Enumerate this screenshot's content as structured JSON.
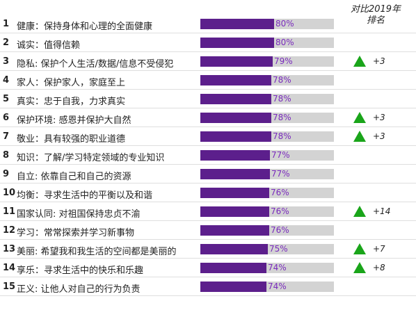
{
  "header": {
    "line1": "对比2019年",
    "line2": "排名"
  },
  "chart_data": {
    "type": "bar",
    "orientation": "horizontal",
    "ranks": [
      1,
      2,
      3,
      4,
      5,
      6,
      7,
      8,
      9,
      10,
      11,
      12,
      13,
      14,
      15
    ],
    "categories": [
      "健康：保持身体和心理的全面健康",
      "诚实：值得信赖",
      "隐私: 保护个人生活/数据/信息不受侵犯",
      "家人：保护家人，家庭至上",
      "真实：忠于自我，力求真实",
      "保护环境: 感恩并保护大自然",
      "敬业：具有较强的职业道德",
      "知识：了解/学习特定领域的专业知识",
      "自立: 依靠自己和自己的资源",
      "均衡：寻求生活中的平衡以及和谐",
      "国家认同: 对祖国保持忠贞不渝",
      "学习：常常探索并学习新事物",
      "美丽: 希望我和我生活的空间都是美丽的",
      "享乐：寻求生活中的快乐和乐趣",
      "正义: 让他人对自己的行为负责"
    ],
    "values": [
      80,
      80,
      79,
      78,
      78,
      78,
      78,
      77,
      77,
      76,
      76,
      76,
      75,
      74,
      74
    ],
    "value_labels": [
      "80%",
      "80%",
      "79%",
      "78%",
      "78%",
      "78%",
      "78%",
      "77%",
      "77%",
      "76%",
      "76%",
      "76%",
      "75%",
      "74%",
      "74%"
    ],
    "xlim": [
      0,
      100
    ],
    "rank_changes": [
      "",
      "",
      "+3",
      "",
      "",
      "+3",
      "+3",
      "",
      "",
      "",
      "+14",
      "",
      "+7",
      "+8",
      ""
    ],
    "colors": {
      "bar": "#5c1f8c",
      "track": "#d3d3d3",
      "label": "#7a2bbd",
      "up_arrow": "#1aa51a"
    }
  }
}
